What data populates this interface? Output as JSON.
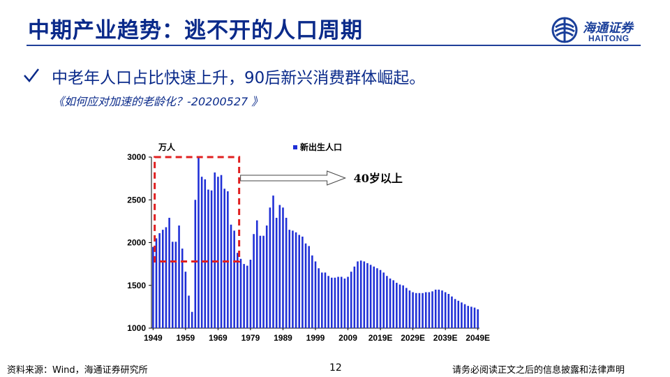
{
  "header": {
    "title": "中期产业趋势：逃不开的人口周期",
    "logo_cn": "海通证券",
    "logo_en": "HAITONG",
    "logo_icon": "haitong-globe-icon"
  },
  "bullet": {
    "icon": "check-icon",
    "text": "中老年人口占比快速上升，90后新兴消费群体崛起。",
    "reference": "《如何应对加速的老龄化？-20200527 》"
  },
  "footer": {
    "source": "资料来源：Wind，海通证券研究所",
    "page": "12",
    "disclaimer": "请务必阅读正文之后的信息披露和法律声明"
  },
  "colors": {
    "title": "#0a2a8a",
    "bar": "#1f2fd6",
    "highlight_box": "#e02020"
  },
  "chart_data": {
    "type": "bar",
    "unit": "万人",
    "ylim": [
      1000,
      3000
    ],
    "yticks": [
      1000,
      1500,
      2000,
      2500,
      3000
    ],
    "xtick_labels": [
      "1949",
      "1959",
      "1969",
      "1979",
      "1989",
      "1999",
      "2009",
      "2019E",
      "2029E",
      "2039E",
      "2049E"
    ],
    "series": [
      {
        "name": "新出生人口",
        "x_start": 1949,
        "values": [
          1950,
          2050,
          2110,
          2150,
          2180,
          2290,
          2010,
          2010,
          2200,
          1930,
          1660,
          1380,
          1190,
          2500,
          3000,
          2770,
          2740,
          2620,
          2610,
          2820,
          2770,
          2790,
          2630,
          2600,
          2210,
          2140,
          1880,
          1810,
          1750,
          1730,
          1800,
          2100,
          2260,
          2080,
          2080,
          2200,
          2410,
          2550,
          2290,
          2440,
          2410,
          2290,
          2150,
          2140,
          2120,
          2090,
          2070,
          1990,
          1960,
          1850,
          1780,
          1700,
          1650,
          1650,
          1610,
          1590,
          1590,
          1600,
          1600,
          1580,
          1600,
          1660,
          1720,
          1780,
          1790,
          1780,
          1760,
          1740,
          1720,
          1700,
          1680,
          1650,
          1610,
          1580,
          1560,
          1530,
          1510,
          1500,
          1470,
          1440,
          1420,
          1410,
          1410,
          1410,
          1420,
          1420,
          1430,
          1450,
          1450,
          1440,
          1420,
          1400,
          1370,
          1340,
          1320,
          1300,
          1280,
          1260,
          1250,
          1240,
          1220
        ]
      }
    ],
    "annotation": {
      "text": "40岁以上",
      "box_x_range": [
        1950,
        1976
      ],
      "box_y_range": [
        1780,
        3000
      ]
    }
  }
}
